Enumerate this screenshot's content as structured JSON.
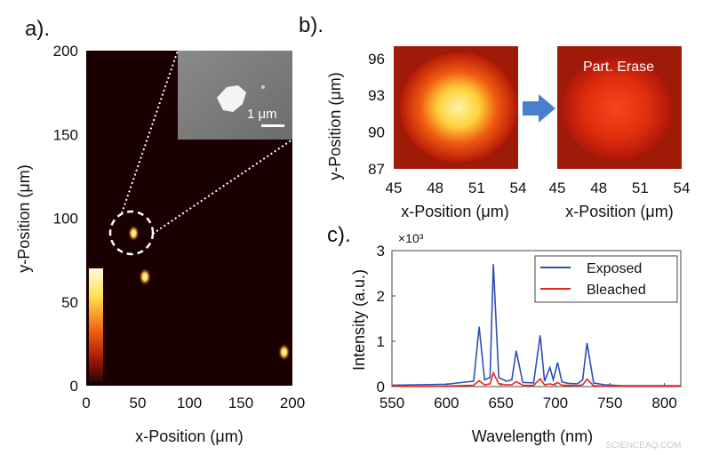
{
  "panels": {
    "a": {
      "label": "a).",
      "xlabel": "x-Position (μm)",
      "ylabel": "y-Position (μm)",
      "xticks": [
        "0",
        "50",
        "100",
        "150",
        "200"
      ],
      "yticks": [
        "0",
        "50",
        "100",
        "150",
        "200"
      ],
      "inset_scale_label": "1 μm"
    },
    "b": {
      "label": "b).",
      "ylabel": "y-Position (μm)",
      "left_xlabel": "x-Position (μm)",
      "right_xlabel": "x-Position (μm)",
      "xticks": [
        "45",
        "48",
        "51",
        "54"
      ],
      "yticks": [
        "87",
        "90",
        "93",
        "96"
      ],
      "right_title": "Part. Erase"
    },
    "c": {
      "label": "c).",
      "xlabel": "Wavelength (nm)",
      "ylabel": "Intensity (a.u.)",
      "exponent": "×10³",
      "xticks": [
        "550",
        "600",
        "650",
        "700",
        "750",
        "800"
      ],
      "yticks": [
        "0",
        "1",
        "2",
        "3"
      ],
      "legend": [
        "Exposed",
        "Bleached"
      ]
    }
  },
  "colors": {
    "exposed": "#2f4fb3",
    "bleached": "#e8231c",
    "arrow": "#4a7fd0"
  },
  "watermark": "SCIENCEAQ.COM",
  "chart_data": [
    {
      "type": "heatmap",
      "panel": "a",
      "xlim": [
        0,
        200
      ],
      "ylim": [
        0,
        200
      ],
      "spots": [
        {
          "x": 46,
          "y": 91,
          "intensity": 0.7
        },
        {
          "x": 57,
          "y": 65,
          "intensity": 0.9
        },
        {
          "x": 192,
          "y": 20,
          "intensity": 0.85
        }
      ]
    },
    {
      "type": "heatmap",
      "panel": "b",
      "xlim": [
        45,
        54
      ],
      "ylim": [
        87,
        97
      ],
      "maps": [
        {
          "center_x": 50.5,
          "center_y": 92.5,
          "peak": 1.0
        },
        {
          "center_x": 50.0,
          "center_y": 92.5,
          "peak": 0.55
        }
      ]
    },
    {
      "type": "line",
      "panel": "c",
      "xlim": [
        550,
        815
      ],
      "ylim": [
        0,
        3000
      ],
      "x": [
        550,
        600,
        625,
        630,
        635,
        640,
        643,
        648,
        655,
        660,
        664,
        670,
        680,
        686,
        690,
        695,
        698,
        702,
        706,
        712,
        720,
        725,
        729,
        735,
        745,
        760,
        815
      ],
      "series": [
        {
          "name": "Exposed",
          "values": [
            30,
            50,
            120,
            1320,
            150,
            200,
            2700,
            200,
            120,
            150,
            790,
            90,
            80,
            1130,
            120,
            420,
            150,
            530,
            100,
            70,
            60,
            150,
            960,
            80,
            40,
            20,
            20
          ]
        },
        {
          "name": "Bleached",
          "values": [
            5,
            10,
            30,
            130,
            40,
            60,
            300,
            60,
            40,
            40,
            110,
            30,
            25,
            170,
            40,
            60,
            40,
            90,
            30,
            25,
            20,
            40,
            160,
            20,
            10,
            5,
            5
          ]
        }
      ]
    }
  ]
}
